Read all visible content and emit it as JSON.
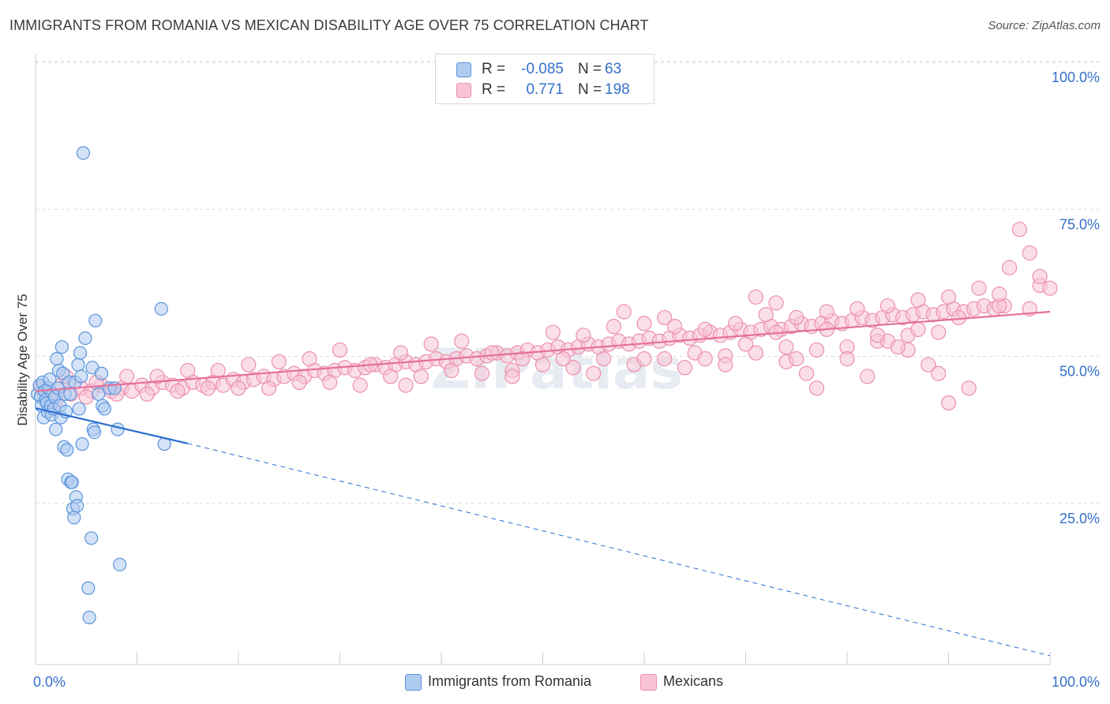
{
  "chart_data": {
    "type": "scatter",
    "title": "IMMIGRANTS FROM ROMANIA VS MEXICAN DISABILITY AGE OVER 75 CORRELATION CHART",
    "source": "Source: ZipAtlas.com",
    "ylabel": "Disability Age Over 75",
    "xlabel": "",
    "xlim": [
      0,
      100
    ],
    "ylim": [
      0,
      100
    ],
    "x_tick_labels": [
      "0.0%",
      "100.0%"
    ],
    "y_tick_labels": [
      "100.0%",
      "75.0%",
      "50.0%",
      "25.0%"
    ],
    "y_tick_values": [
      100,
      75,
      50,
      25
    ],
    "watermark": "ZIPatlas",
    "legend": {
      "r_label": "R =",
      "n_label": "N =",
      "rows": [
        {
          "name": "Immigrants from Romania",
          "r": "-0.085",
          "n": "63",
          "color": "#6fa8e8"
        },
        {
          "name": "Mexicans",
          "r": "0.771",
          "n": "198",
          "color": "#f39ab8"
        }
      ]
    },
    "colors": {
      "romania_fill": "#aecbf0",
      "romania_stroke": "#5b95dc",
      "romania_line": "#2e6fd1",
      "mexico_fill": "#f8c4d5",
      "mexico_stroke": "#ec8fae",
      "mexico_line": "#e4709a",
      "value_text": "#3571c9",
      "grid": "#dcdcdc"
    },
    "series": [
      {
        "name": "Immigrants from Romania",
        "trend": {
          "x0": 0,
          "y0": 43.6,
          "x_solid_end": 15,
          "y_solid_end": 37.6,
          "x1": 100,
          "y1": 1.5
        },
        "points": [
          [
            0.2,
            46
          ],
          [
            0.4,
            47.5
          ],
          [
            0.5,
            45.5
          ],
          [
            0.6,
            44
          ],
          [
            0.7,
            48
          ],
          [
            0.8,
            42
          ],
          [
            0.9,
            46.5
          ],
          [
            1.0,
            45
          ],
          [
            1.1,
            44.5
          ],
          [
            1.2,
            43
          ],
          [
            1.3,
            47
          ],
          [
            1.4,
            48.5
          ],
          [
            1.5,
            44
          ],
          [
            1.6,
            42.5
          ],
          [
            1.7,
            46
          ],
          [
            1.8,
            43.5
          ],
          [
            1.9,
            45.5
          ],
          [
            2.0,
            40
          ],
          [
            2.1,
            52
          ],
          [
            2.2,
            47
          ],
          [
            2.3,
            50
          ],
          [
            2.4,
            44
          ],
          [
            2.5,
            42
          ],
          [
            2.6,
            54
          ],
          [
            2.7,
            49.5
          ],
          [
            2.8,
            37
          ],
          [
            2.9,
            46
          ],
          [
            3.0,
            43
          ],
          [
            3.1,
            36.5
          ],
          [
            3.2,
            31.5
          ],
          [
            3.3,
            48
          ],
          [
            3.4,
            46
          ],
          [
            3.5,
            31
          ],
          [
            3.6,
            31
          ],
          [
            3.7,
            26.5
          ],
          [
            3.8,
            25
          ],
          [
            3.9,
            48
          ],
          [
            4.0,
            28.5
          ],
          [
            4.1,
            27
          ],
          [
            4.2,
            51
          ],
          [
            4.3,
            43.5
          ],
          [
            4.4,
            53
          ],
          [
            4.5,
            49
          ],
          [
            4.6,
            37.5
          ],
          [
            4.7,
            87
          ],
          [
            4.9,
            55.5
          ],
          [
            5.2,
            13
          ],
          [
            5.3,
            8
          ],
          [
            5.5,
            21.5
          ],
          [
            5.6,
            50.5
          ],
          [
            5.7,
            40
          ],
          [
            5.8,
            39.5
          ],
          [
            5.9,
            58.5
          ],
          [
            6.2,
            46
          ],
          [
            6.5,
            49.5
          ],
          [
            6.6,
            44
          ],
          [
            6.8,
            43.5
          ],
          [
            7.3,
            47
          ],
          [
            7.8,
            47
          ],
          [
            8.1,
            40
          ],
          [
            8.3,
            17
          ],
          [
            12.4,
            60.5
          ],
          [
            12.7,
            37.5
          ]
        ]
      },
      {
        "name": "Mexicans",
        "trend": {
          "x0": 0,
          "y0": 46.5,
          "x1": 100,
          "y1": 60
        },
        "points": [
          [
            0.5,
            47
          ],
          [
            1.5,
            46
          ],
          [
            2.5,
            47.5
          ],
          [
            3.5,
            46
          ],
          [
            4.5,
            47
          ],
          [
            5.5,
            46.5
          ],
          [
            6.5,
            47.5
          ],
          [
            7.5,
            46.5
          ],
          [
            8.5,
            47
          ],
          [
            9.5,
            46.5
          ],
          [
            10.5,
            47.5
          ],
          [
            11.5,
            47
          ],
          [
            12.5,
            48
          ],
          [
            13.5,
            47.5
          ],
          [
            14.5,
            47
          ],
          [
            15.5,
            48
          ],
          [
            16.5,
            47.5
          ],
          [
            17.5,
            48
          ],
          [
            18.5,
            47.5
          ],
          [
            19.5,
            48.5
          ],
          [
            20.5,
            48
          ],
          [
            21.5,
            48.5
          ],
          [
            22.5,
            49
          ],
          [
            23.5,
            48.5
          ],
          [
            24.5,
            49
          ],
          [
            25.5,
            49.5
          ],
          [
            26.5,
            49
          ],
          [
            27.5,
            50
          ],
          [
            28.5,
            49.5
          ],
          [
            29.5,
            50
          ],
          [
            30.5,
            50.5
          ],
          [
            31.5,
            50
          ],
          [
            32.5,
            50.5
          ],
          [
            33.5,
            51
          ],
          [
            34.5,
            50.5
          ],
          [
            35.5,
            51
          ],
          [
            36.5,
            51.5
          ],
          [
            37.5,
            51
          ],
          [
            38.5,
            51.5
          ],
          [
            39.5,
            52
          ],
          [
            40.5,
            51.5
          ],
          [
            41.5,
            52
          ],
          [
            42.5,
            52.5
          ],
          [
            43.5,
            52
          ],
          [
            44.5,
            52.5
          ],
          [
            45.5,
            53
          ],
          [
            46.5,
            52.5
          ],
          [
            47.5,
            53
          ],
          [
            48.5,
            53.5
          ],
          [
            49.5,
            53
          ],
          [
            50.5,
            53.5
          ],
          [
            51.5,
            54
          ],
          [
            52.5,
            53.5
          ],
          [
            53.5,
            54
          ],
          [
            54.5,
            54.5
          ],
          [
            55.5,
            54
          ],
          [
            56.5,
            54.5
          ],
          [
            57.5,
            55
          ],
          [
            58.5,
            54.5
          ],
          [
            59.5,
            55
          ],
          [
            60.5,
            55.5
          ],
          [
            61.5,
            55
          ],
          [
            62.5,
            55.5
          ],
          [
            63.5,
            56
          ],
          [
            64.5,
            55.5
          ],
          [
            65.5,
            56
          ],
          [
            66.5,
            56.5
          ],
          [
            67.5,
            56
          ],
          [
            68.5,
            56.5
          ],
          [
            69.5,
            57
          ],
          [
            70.5,
            56.5
          ],
          [
            71.5,
            57
          ],
          [
            72.5,
            57.5
          ],
          [
            73.5,
            57
          ],
          [
            74.5,
            57.5
          ],
          [
            75.5,
            58
          ],
          [
            76.5,
            57.5
          ],
          [
            77.5,
            58
          ],
          [
            78.5,
            58.5
          ],
          [
            79.5,
            58
          ],
          [
            80.5,
            58.5
          ],
          [
            81.5,
            59
          ],
          [
            82.5,
            58.5
          ],
          [
            83.5,
            59
          ],
          [
            84.5,
            59.5
          ],
          [
            85.5,
            59
          ],
          [
            86.5,
            59.5
          ],
          [
            87.5,
            60
          ],
          [
            88.5,
            59.5
          ],
          [
            89.5,
            60
          ],
          [
            90.5,
            60.5
          ],
          [
            91.5,
            60
          ],
          [
            92.5,
            60.5
          ],
          [
            93.5,
            61
          ],
          [
            94.5,
            60.5
          ],
          [
            95.5,
            61
          ],
          [
            3,
            49
          ],
          [
            6,
            48
          ],
          [
            9,
            49
          ],
          [
            12,
            49
          ],
          [
            15,
            50
          ],
          [
            18,
            50
          ],
          [
            21,
            51
          ],
          [
            24,
            51.5
          ],
          [
            27,
            52
          ],
          [
            30,
            53.5
          ],
          [
            33,
            51
          ],
          [
            36,
            53
          ],
          [
            39,
            54.5
          ],
          [
            42,
            55
          ],
          [
            45,
            53
          ],
          [
            48,
            52
          ],
          [
            51,
            56.5
          ],
          [
            54,
            56
          ],
          [
            57,
            57.5
          ],
          [
            60,
            58
          ],
          [
            63,
            57.5
          ],
          [
            66,
            57
          ],
          [
            69,
            58
          ],
          [
            72,
            59.5
          ],
          [
            75,
            59
          ],
          [
            78,
            60
          ],
          [
            81,
            60.5
          ],
          [
            84,
            61
          ],
          [
            87,
            62
          ],
          [
            90,
            62.5
          ],
          [
            2,
            45
          ],
          [
            5,
            45.5
          ],
          [
            8,
            46
          ],
          [
            11,
            46
          ],
          [
            14,
            46.5
          ],
          [
            17,
            47
          ],
          [
            20,
            47
          ],
          [
            23,
            47
          ],
          [
            26,
            48
          ],
          [
            29,
            48
          ],
          [
            32,
            47.5
          ],
          [
            35,
            49
          ],
          [
            38,
            49
          ],
          [
            41,
            50
          ],
          [
            44,
            49.5
          ],
          [
            47,
            50
          ],
          [
            50,
            51
          ],
          [
            53,
            50.5
          ],
          [
            56,
            52
          ],
          [
            59,
            51
          ],
          [
            62,
            52
          ],
          [
            65,
            53
          ],
          [
            68,
            52.5
          ],
          [
            71,
            53
          ],
          [
            74,
            54
          ],
          [
            77,
            53.5
          ],
          [
            80,
            54
          ],
          [
            83,
            55
          ],
          [
            86,
            56
          ],
          [
            89,
            56.5
          ],
          [
            36.5,
            47.5
          ],
          [
            47,
            49
          ],
          [
            52,
            52
          ],
          [
            60,
            52
          ],
          [
            64,
            50.5
          ],
          [
            68,
            51
          ],
          [
            71,
            62.5
          ],
          [
            73,
            61.5
          ],
          [
            74,
            51.5
          ],
          [
            76,
            49.5
          ],
          [
            78,
            57
          ],
          [
            82,
            49
          ],
          [
            84,
            55
          ],
          [
            86,
            53.5
          ],
          [
            87,
            57
          ],
          [
            89,
            49.5
          ],
          [
            92,
            47
          ],
          [
            95,
            61
          ],
          [
            96,
            67.5
          ],
          [
            97,
            74
          ],
          [
            98,
            70
          ],
          [
            99,
            64.5
          ],
          [
            100,
            64
          ],
          [
            99,
            66
          ],
          [
            98,
            60.5
          ],
          [
            95,
            63
          ],
          [
            93,
            64
          ],
          [
            91,
            59
          ],
          [
            90,
            44.5
          ],
          [
            88,
            51
          ],
          [
            85,
            54
          ],
          [
            83,
            56
          ],
          [
            80,
            52
          ],
          [
            77,
            47
          ],
          [
            75,
            52
          ],
          [
            73,
            56.5
          ],
          [
            70,
            54.5
          ],
          [
            66,
            52
          ],
          [
            62,
            59
          ],
          [
            58,
            60
          ],
          [
            55,
            49.5
          ]
        ]
      }
    ]
  }
}
